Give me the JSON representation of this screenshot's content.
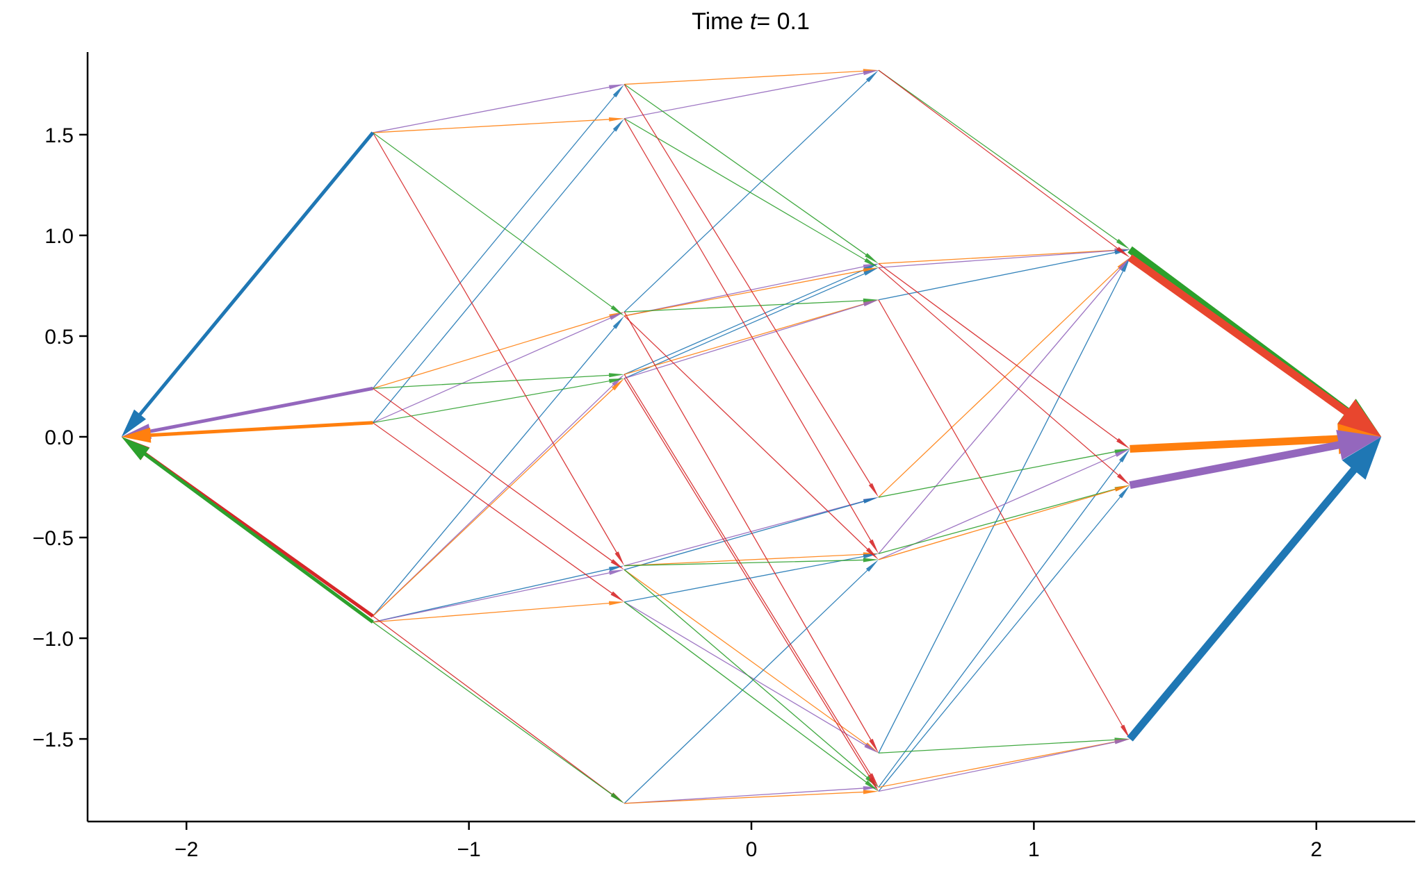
{
  "chart_data": {
    "type": "quiver",
    "title": {
      "prefix": "Time ",
      "variable": "t",
      "suffix": "= 0.1"
    },
    "xlabel": "",
    "ylabel": "",
    "xlim": [
      -2.35,
      2.35
    ],
    "ylim": [
      -1.91,
      1.91
    ],
    "x_ticks": [
      -2,
      -1,
      0,
      1,
      2
    ],
    "x_tick_labels": [
      "−2",
      "−1",
      "0",
      "1",
      "2"
    ],
    "y_ticks": [
      -1.5,
      -1.0,
      -0.5,
      0.0,
      0.5,
      1.0,
      1.5
    ],
    "y_tick_labels": [
      "−1.5",
      "−1.0",
      "−0.5",
      "0.0",
      "0.5",
      "1.0",
      "1.5"
    ],
    "grid": false,
    "legend": "none",
    "colors": {
      "blue": "#1f77b4",
      "orange": "#ff7f0e",
      "green": "#2ca02c",
      "red": "#d62728",
      "purple": "#9467bd",
      "red_bright": "#e8462e"
    },
    "vertices": [
      {
        "id": "0",
        "x": 2.23,
        "y": 0.0
      },
      {
        "id": "1",
        "x": 1.34,
        "y": 0.93
      },
      {
        "id": "2",
        "x": 1.34,
        "y": 0.89
      },
      {
        "id": "3",
        "x": 1.34,
        "y": -0.06
      },
      {
        "id": "4",
        "x": 1.34,
        "y": -0.24
      },
      {
        "id": "5",
        "x": 1.34,
        "y": -1.5
      },
      {
        "id": "12",
        "x": 0.45,
        "y": 1.82
      },
      {
        "id": "13",
        "x": 0.45,
        "y": 0.86
      },
      {
        "id": "14",
        "x": 0.45,
        "y": 0.84
      },
      {
        "id": "15",
        "x": 0.45,
        "y": 0.68
      },
      {
        "id": "23",
        "x": 0.45,
        "y": -0.3
      },
      {
        "id": "24",
        "x": 0.45,
        "y": -0.58
      },
      {
        "id": "34",
        "x": 0.45,
        "y": -0.61
      },
      {
        "id": "25",
        "x": 0.45,
        "y": -1.57
      },
      {
        "id": "35",
        "x": 0.45,
        "y": -1.74
      },
      {
        "id": "45",
        "x": 0.45,
        "y": -1.76
      },
      {
        "id": "123",
        "x": -0.45,
        "y": 1.75
      },
      {
        "id": "124",
        "x": -0.45,
        "y": 1.58
      },
      {
        "id": "125",
        "x": -0.45,
        "y": 0.62
      },
      {
        "id": "134",
        "x": -0.45,
        "y": 0.6
      },
      {
        "id": "135",
        "x": -0.45,
        "y": 0.31
      },
      {
        "id": "145",
        "x": -0.45,
        "y": 0.29
      },
      {
        "id": "234",
        "x": -0.45,
        "y": -0.64
      },
      {
        "id": "235",
        "x": -0.45,
        "y": -0.66
      },
      {
        "id": "245",
        "x": -0.45,
        "y": -0.82
      },
      {
        "id": "345",
        "x": -0.45,
        "y": -1.82
      },
      {
        "id": "1234",
        "x": -1.34,
        "y": 1.51
      },
      {
        "id": "1235",
        "x": -1.34,
        "y": 0.24
      },
      {
        "id": "1245",
        "x": -1.34,
        "y": 0.07
      },
      {
        "id": "1345",
        "x": -1.34,
        "y": -0.89
      },
      {
        "id": "2345",
        "x": -1.34,
        "y": -0.92
      },
      {
        "id": "all",
        "x": -2.23,
        "y": 0.0
      }
    ],
    "arrows": [
      {
        "from": "1",
        "to": "0",
        "color": "green",
        "weight": 1.0
      },
      {
        "from": "2",
        "to": "0",
        "color": "red_bright",
        "weight": 1.0
      },
      {
        "from": "3",
        "to": "0",
        "color": "orange",
        "weight": 1.0
      },
      {
        "from": "4",
        "to": "0",
        "color": "purple",
        "weight": 1.0
      },
      {
        "from": "5",
        "to": "0",
        "color": "blue",
        "weight": 1.0
      },
      {
        "from": "1234",
        "to": "all",
        "color": "blue",
        "weight": 0.55
      },
      {
        "from": "1235",
        "to": "all",
        "color": "purple",
        "weight": 0.55
      },
      {
        "from": "1245",
        "to": "all",
        "color": "orange",
        "weight": 0.55
      },
      {
        "from": "1345",
        "to": "all",
        "color": "red",
        "weight": 0.55
      },
      {
        "from": "2345",
        "to": "all",
        "color": "green",
        "weight": 0.55
      },
      {
        "from": "12",
        "to": "1",
        "color": "green",
        "weight": 0.07
      },
      {
        "from": "13",
        "to": "1",
        "color": "orange",
        "weight": 0.07
      },
      {
        "from": "14",
        "to": "1",
        "color": "purple",
        "weight": 0.07
      },
      {
        "from": "15",
        "to": "1",
        "color": "blue",
        "weight": 0.07
      },
      {
        "from": "12",
        "to": "2",
        "color": "red",
        "weight": 0.07
      },
      {
        "from": "23",
        "to": "2",
        "color": "orange",
        "weight": 0.07
      },
      {
        "from": "24",
        "to": "2",
        "color": "purple",
        "weight": 0.07
      },
      {
        "from": "25",
        "to": "2",
        "color": "blue",
        "weight": 0.07
      },
      {
        "from": "13",
        "to": "3",
        "color": "red",
        "weight": 0.07
      },
      {
        "from": "23",
        "to": "3",
        "color": "green",
        "weight": 0.07
      },
      {
        "from": "34",
        "to": "3",
        "color": "purple",
        "weight": 0.07
      },
      {
        "from": "35",
        "to": "3",
        "color": "blue",
        "weight": 0.07
      },
      {
        "from": "14",
        "to": "4",
        "color": "red",
        "weight": 0.07
      },
      {
        "from": "24",
        "to": "4",
        "color": "green",
        "weight": 0.07
      },
      {
        "from": "34",
        "to": "4",
        "color": "orange",
        "weight": 0.07
      },
      {
        "from": "45",
        "to": "4",
        "color": "blue",
        "weight": 0.07
      },
      {
        "from": "15",
        "to": "5",
        "color": "red",
        "weight": 0.07
      },
      {
        "from": "25",
        "to": "5",
        "color": "green",
        "weight": 0.07
      },
      {
        "from": "35",
        "to": "5",
        "color": "orange",
        "weight": 0.07
      },
      {
        "from": "45",
        "to": "5",
        "color": "purple",
        "weight": 0.07
      },
      {
        "from": "123",
        "to": "12",
        "color": "orange",
        "weight": 0.05
      },
      {
        "from": "124",
        "to": "12",
        "color": "purple",
        "weight": 0.05
      },
      {
        "from": "125",
        "to": "12",
        "color": "blue",
        "weight": 0.05
      },
      {
        "from": "123",
        "to": "13",
        "color": "green",
        "weight": 0.05
      },
      {
        "from": "134",
        "to": "13",
        "color": "purple",
        "weight": 0.05
      },
      {
        "from": "135",
        "to": "13",
        "color": "blue",
        "weight": 0.05
      },
      {
        "from": "124",
        "to": "14",
        "color": "green",
        "weight": 0.05
      },
      {
        "from": "134",
        "to": "14",
        "color": "orange",
        "weight": 0.05
      },
      {
        "from": "145",
        "to": "14",
        "color": "blue",
        "weight": 0.05
      },
      {
        "from": "125",
        "to": "15",
        "color": "green",
        "weight": 0.05
      },
      {
        "from": "135",
        "to": "15",
        "color": "orange",
        "weight": 0.05
      },
      {
        "from": "145",
        "to": "15",
        "color": "purple",
        "weight": 0.05
      },
      {
        "from": "123",
        "to": "23",
        "color": "red",
        "weight": 0.05
      },
      {
        "from": "234",
        "to": "23",
        "color": "purple",
        "weight": 0.05
      },
      {
        "from": "235",
        "to": "23",
        "color": "blue",
        "weight": 0.05
      },
      {
        "from": "124",
        "to": "24",
        "color": "red",
        "weight": 0.05
      },
      {
        "from": "234",
        "to": "24",
        "color": "orange",
        "weight": 0.05
      },
      {
        "from": "245",
        "to": "24",
        "color": "blue",
        "weight": 0.05
      },
      {
        "from": "125",
        "to": "25",
        "color": "red",
        "weight": 0.05
      },
      {
        "from": "235",
        "to": "25",
        "color": "orange",
        "weight": 0.05
      },
      {
        "from": "245",
        "to": "25",
        "color": "purple",
        "weight": 0.05
      },
      {
        "from": "134",
        "to": "34",
        "color": "red",
        "weight": 0.05
      },
      {
        "from": "234",
        "to": "34",
        "color": "green",
        "weight": 0.05
      },
      {
        "from": "345",
        "to": "34",
        "color": "blue",
        "weight": 0.05
      },
      {
        "from": "135",
        "to": "35",
        "color": "red",
        "weight": 0.05
      },
      {
        "from": "235",
        "to": "35",
        "color": "green",
        "weight": 0.05
      },
      {
        "from": "345",
        "to": "35",
        "color": "purple",
        "weight": 0.05
      },
      {
        "from": "145",
        "to": "45",
        "color": "red",
        "weight": 0.05
      },
      {
        "from": "245",
        "to": "45",
        "color": "green",
        "weight": 0.05
      },
      {
        "from": "345",
        "to": "45",
        "color": "orange",
        "weight": 0.05
      },
      {
        "from": "1234",
        "to": "123",
        "color": "purple",
        "weight": 0.06
      },
      {
        "from": "1235",
        "to": "123",
        "color": "blue",
        "weight": 0.06
      },
      {
        "from": "1234",
        "to": "124",
        "color": "orange",
        "weight": 0.06
      },
      {
        "from": "1245",
        "to": "124",
        "color": "blue",
        "weight": 0.06
      },
      {
        "from": "1235",
        "to": "125",
        "color": "orange",
        "weight": 0.06
      },
      {
        "from": "1245",
        "to": "125",
        "color": "purple",
        "weight": 0.06
      },
      {
        "from": "1234",
        "to": "134",
        "color": "green",
        "weight": 0.06
      },
      {
        "from": "1345",
        "to": "134",
        "color": "blue",
        "weight": 0.06
      },
      {
        "from": "1235",
        "to": "135",
        "color": "green",
        "weight": 0.06
      },
      {
        "from": "1345",
        "to": "135",
        "color": "purple",
        "weight": 0.06
      },
      {
        "from": "1245",
        "to": "145",
        "color": "green",
        "weight": 0.06
      },
      {
        "from": "1345",
        "to": "145",
        "color": "orange",
        "weight": 0.06
      },
      {
        "from": "1234",
        "to": "234",
        "color": "red",
        "weight": 0.06
      },
      {
        "from": "2345",
        "to": "234",
        "color": "blue",
        "weight": 0.06
      },
      {
        "from": "1235",
        "to": "235",
        "color": "red",
        "weight": 0.06
      },
      {
        "from": "2345",
        "to": "235",
        "color": "purple",
        "weight": 0.06
      },
      {
        "from": "1245",
        "to": "245",
        "color": "red",
        "weight": 0.06
      },
      {
        "from": "2345",
        "to": "245",
        "color": "orange",
        "weight": 0.06
      },
      {
        "from": "1345",
        "to": "345",
        "color": "red",
        "weight": 0.06
      },
      {
        "from": "2345",
        "to": "345",
        "color": "green",
        "weight": 0.06
      }
    ]
  }
}
